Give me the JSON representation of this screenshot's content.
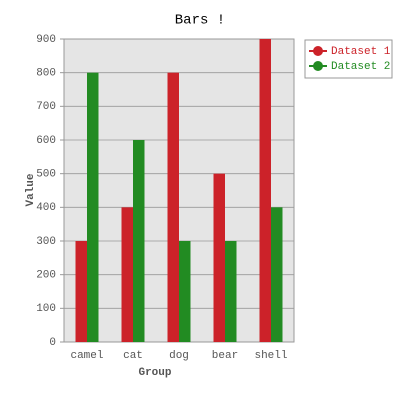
{
  "chart_data": {
    "type": "bar",
    "title": "Bars !",
    "x_label": "Group",
    "y_label": "Value",
    "categories": [
      "camel",
      "cat",
      "dog",
      "bear",
      "shell"
    ],
    "series": [
      {
        "name": "Dataset 1",
        "color": "#cc2229",
        "values": [
          300,
          400,
          800,
          500,
          900
        ]
      },
      {
        "name": "Dataset 2",
        "color": "#228b22",
        "values": [
          800,
          600,
          300,
          300,
          400
        ]
      }
    ],
    "ylim": [
      0,
      900
    ],
    "yticks": [
      0,
      100,
      200,
      300,
      400,
      500,
      600,
      700,
      800,
      900
    ],
    "grid": true,
    "legend": "outside-right"
  }
}
